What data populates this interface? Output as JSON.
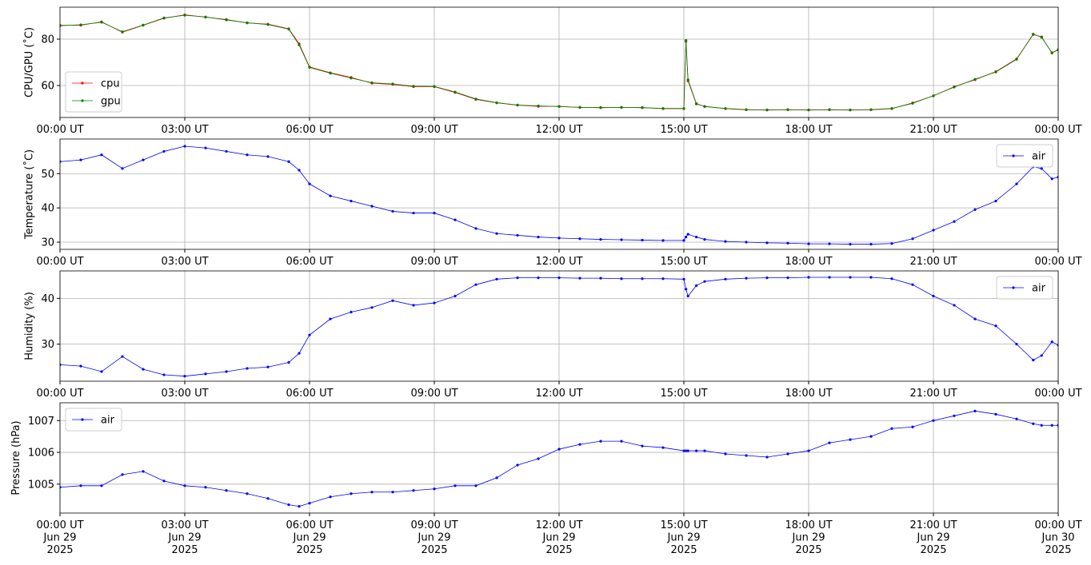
{
  "chart_data": [
    {
      "type": "line",
      "ylabel": "CPU/GPU (˚C)",
      "legend": "lower left",
      "grid": true,
      "x": [
        0,
        0.5,
        1,
        1.5,
        2,
        2.5,
        3,
        3.5,
        4,
        4.5,
        5,
        5.5,
        5.75,
        6,
        6.5,
        7,
        7.5,
        8,
        8.5,
        9,
        9.5,
        10,
        10.5,
        11,
        11.5,
        12,
        12.5,
        13,
        13.5,
        14,
        14.5,
        15,
        15.05,
        15.1,
        15.3,
        15.5,
        16,
        16.5,
        17,
        17.5,
        18,
        18.5,
        19,
        19.5,
        20,
        20.5,
        21,
        21.5,
        22,
        22.5,
        23,
        23.4,
        23.6,
        23.85,
        24
      ],
      "xlim": [
        0,
        24
      ],
      "xticks": [
        {
          "value": 0,
          "label": "00:00 UT"
        },
        {
          "value": 3,
          "label": "03:00 UT"
        },
        {
          "value": 6,
          "label": "06:00 UT"
        },
        {
          "value": 9,
          "label": "09:00 UT"
        },
        {
          "value": 12,
          "label": "12:00 UT"
        },
        {
          "value": 15,
          "label": "15:00 UT"
        },
        {
          "value": 18,
          "label": "18:00 UT"
        },
        {
          "value": 21,
          "label": "21:00 UT"
        },
        {
          "value": 24,
          "label": "00:00 UT"
        }
      ],
      "ylim": [
        46.2,
        93.8
      ],
      "yticks": [
        60,
        80
      ],
      "series": [
        {
          "name": "cpu",
          "color": "#ff0000",
          "values": [
            86,
            86,
            87.5,
            83,
            86,
            89,
            90.5,
            89.5,
            88.5,
            87,
            86.5,
            84.5,
            78,
            68,
            65.5,
            63.5,
            61,
            60.5,
            59.5,
            59.5,
            57,
            54,
            52.5,
            51.5,
            51,
            51,
            50.5,
            50.5,
            50.5,
            50.5,
            50,
            50,
            79,
            62,
            52,
            51,
            50,
            49.5,
            49.5,
            49.5,
            49.5,
            49.5,
            49.5,
            49.5,
            50,
            52.5,
            55.5,
            59.5,
            62.5,
            66,
            71.5,
            82,
            81,
            74,
            75.5
          ]
        },
        {
          "name": "gpu",
          "color": "#008000",
          "values": [
            85.8,
            86.2,
            87.3,
            83.2,
            86.1,
            89.2,
            90.3,
            89.6,
            88.3,
            87.1,
            86.3,
            84.3,
            77.5,
            67.8,
            65.3,
            63.2,
            61.2,
            60.7,
            59.7,
            59.6,
            57.2,
            54.2,
            52.6,
            51.6,
            51.2,
            50.9,
            50.6,
            50.4,
            50.6,
            50.4,
            50.1,
            50.1,
            79.5,
            62.5,
            52.2,
            50.9,
            50.1,
            49.6,
            49.4,
            49.6,
            49.4,
            49.6,
            49.4,
            49.6,
            50.1,
            52.3,
            55.6,
            59.3,
            62.7,
            65.8,
            71.3,
            82.2,
            80.8,
            74.2,
            75.3
          ]
        }
      ]
    },
    {
      "type": "line",
      "ylabel": "Temperature (˚C)",
      "legend": "upper right",
      "grid": true,
      "x": [
        0,
        0.5,
        1,
        1.5,
        2,
        2.5,
        3,
        3.5,
        4,
        4.5,
        5,
        5.5,
        5.75,
        6,
        6.5,
        7,
        7.5,
        8,
        8.5,
        9,
        9.5,
        10,
        10.5,
        11,
        11.5,
        12,
        12.5,
        13,
        13.5,
        14,
        14.5,
        15,
        15.05,
        15.1,
        15.3,
        15.5,
        16,
        16.5,
        17,
        17.5,
        18,
        18.5,
        19,
        19.5,
        20,
        20.5,
        21,
        21.5,
        22,
        22.5,
        23,
        23.4,
        23.6,
        23.85,
        24
      ],
      "xlim": [
        0,
        24
      ],
      "xticks": [
        {
          "value": 0,
          "label": "00:00 UT"
        },
        {
          "value": 3,
          "label": "03:00 UT"
        },
        {
          "value": 6,
          "label": "06:00 UT"
        },
        {
          "value": 9,
          "label": "09:00 UT"
        },
        {
          "value": 12,
          "label": "12:00 UT"
        },
        {
          "value": 15,
          "label": "15:00 UT"
        },
        {
          "value": 18,
          "label": "18:00 UT"
        },
        {
          "value": 21,
          "label": "21:00 UT"
        },
        {
          "value": 24,
          "label": "00:00 UT"
        }
      ],
      "ylim": [
        27.9,
        60.1
      ],
      "yticks": [
        30,
        40,
        50
      ],
      "series": [
        {
          "name": "air",
          "color": "#0000ff",
          "values": [
            53.5,
            54,
            55.5,
            51.5,
            54,
            56.5,
            58,
            57.5,
            56.5,
            55.5,
            55,
            53.5,
            51,
            47,
            43.5,
            42,
            40.5,
            39,
            38.5,
            38.5,
            36.5,
            34,
            32.5,
            32,
            31.5,
            31.2,
            31,
            30.8,
            30.7,
            30.6,
            30.5,
            30.5,
            31.5,
            32.3,
            31.5,
            30.8,
            30.2,
            30,
            29.8,
            29.7,
            29.5,
            29.5,
            29.4,
            29.4,
            29.6,
            31,
            33.5,
            36,
            39.5,
            42,
            47,
            52,
            51.5,
            48.5,
            49
          ]
        }
      ]
    },
    {
      "type": "line",
      "ylabel": "Humidity (%)",
      "legend": "upper right",
      "grid": true,
      "x": [
        0,
        0.5,
        1,
        1.5,
        2,
        2.5,
        3,
        3.5,
        4,
        4.5,
        5,
        5.5,
        5.75,
        6,
        6.5,
        7,
        7.5,
        8,
        8.5,
        9,
        9.5,
        10,
        10.5,
        11,
        11.5,
        12,
        12.5,
        13,
        13.5,
        14,
        14.5,
        15,
        15.05,
        15.1,
        15.3,
        15.5,
        16,
        16.5,
        17,
        17.5,
        18,
        18.5,
        19,
        19.5,
        20,
        20.5,
        21,
        21.5,
        22,
        22.5,
        23,
        23.4,
        23.6,
        23.85,
        24
      ],
      "xlim": [
        0,
        24
      ],
      "xticks": [
        {
          "value": 0,
          "label": "00:00 UT"
        },
        {
          "value": 3,
          "label": "03:00 UT"
        },
        {
          "value": 6,
          "label": "06:00 UT"
        },
        {
          "value": 9,
          "label": "09:00 UT"
        },
        {
          "value": 12,
          "label": "12:00 UT"
        },
        {
          "value": 15,
          "label": "15:00 UT"
        },
        {
          "value": 18,
          "label": "18:00 UT"
        },
        {
          "value": 21,
          "label": "21:00 UT"
        },
        {
          "value": 24,
          "label": "00:00 UT"
        }
      ],
      "ylim": [
        21.9,
        46.0
      ],
      "yticks": [
        30,
        40
      ],
      "series": [
        {
          "name": "air",
          "color": "#0000ff",
          "values": [
            25.5,
            25.2,
            24,
            27.3,
            24.5,
            23.3,
            23,
            23.5,
            24,
            24.7,
            25,
            26,
            28,
            32,
            35.5,
            37,
            38,
            39.5,
            38.5,
            39,
            40.5,
            43,
            44.2,
            44.5,
            44.5,
            44.5,
            44.4,
            44.4,
            44.3,
            44.3,
            44.3,
            44.2,
            42,
            40.5,
            42.8,
            43.7,
            44.2,
            44.4,
            44.5,
            44.5,
            44.6,
            44.6,
            44.6,
            44.6,
            44.3,
            43,
            40.5,
            38.5,
            35.5,
            34,
            30,
            26.5,
            27.5,
            30.5,
            29.8
          ]
        }
      ]
    },
    {
      "type": "line",
      "ylabel": "Pressure (hPa)",
      "legend": "upper left",
      "grid": true,
      "x": [
        0,
        0.5,
        1,
        1.5,
        2,
        2.5,
        3,
        3.5,
        4,
        4.5,
        5,
        5.5,
        5.75,
        6,
        6.5,
        7,
        7.5,
        8,
        8.5,
        9,
        9.5,
        10,
        10.5,
        11,
        11.5,
        12,
        12.5,
        13,
        13.5,
        14,
        14.5,
        15,
        15.05,
        15.1,
        15.3,
        15.5,
        16,
        16.5,
        17,
        17.5,
        18,
        18.5,
        19,
        19.5,
        20,
        20.5,
        21,
        21.5,
        22,
        22.5,
        23,
        23.4,
        23.6,
        23.85,
        24
      ],
      "xlim": [
        0,
        24
      ],
      "xticks": [
        {
          "value": 0,
          "label": "00:00 UT\nJun 29\n2025"
        },
        {
          "value": 3,
          "label": "03:00 UT\nJun 29\n2025"
        },
        {
          "value": 6,
          "label": "06:00 UT\nJun 29\n2025"
        },
        {
          "value": 9,
          "label": "09:00 UT\nJun 29\n2025"
        },
        {
          "value": 12,
          "label": "12:00 UT\nJun 29\n2025"
        },
        {
          "value": 15,
          "label": "15:00 UT\nJun 29\n2025"
        },
        {
          "value": 18,
          "label": "18:00 UT\nJun 29\n2025"
        },
        {
          "value": 21,
          "label": "21:00 UT\nJun 29\n2025"
        },
        {
          "value": 24,
          "label": "00:00 UT\nJun 30\n2025"
        }
      ],
      "ylim": [
        1004.09,
        1007.56
      ],
      "yticks": [
        1005,
        1006,
        1007
      ],
      "series": [
        {
          "name": "air",
          "color": "#0000ff",
          "values": [
            1004.9,
            1004.95,
            1004.95,
            1005.3,
            1005.4,
            1005.1,
            1004.95,
            1004.9,
            1004.8,
            1004.7,
            1004.55,
            1004.35,
            1004.3,
            1004.4,
            1004.6,
            1004.7,
            1004.75,
            1004.75,
            1004.8,
            1004.85,
            1004.95,
            1004.95,
            1005.2,
            1005.6,
            1005.8,
            1006.1,
            1006.25,
            1006.35,
            1006.35,
            1006.2,
            1006.15,
            1006.05,
            1006.05,
            1006.05,
            1006.05,
            1006.05,
            1005.95,
            1005.9,
            1005.85,
            1005.95,
            1006.05,
            1006.3,
            1006.4,
            1006.5,
            1006.75,
            1006.8,
            1007.0,
            1007.15,
            1007.3,
            1007.2,
            1007.05,
            1006.9,
            1006.85,
            1006.85,
            1006.85
          ]
        }
      ]
    }
  ]
}
